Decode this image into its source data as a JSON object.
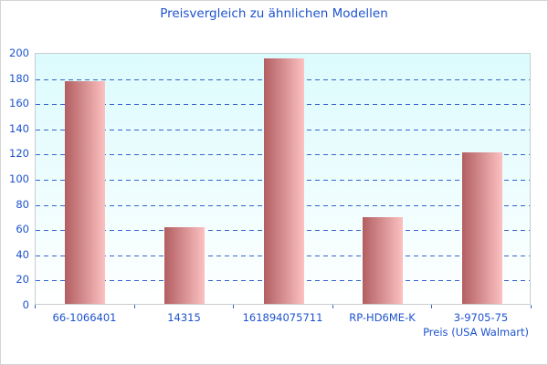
{
  "chart_data": {
    "type": "bar",
    "title": "Preisvergleich zu ähnlichen Modellen",
    "categories": [
      "66-1066401",
      "14315",
      "161894075711",
      "RP-HD6ME-K",
      "3-9705-75"
    ],
    "values": [
      177,
      61,
      195,
      69,
      120
    ],
    "xlabel": "Preis (USA Walmart)",
    "ylabel": "",
    "ylim": [
      0,
      200
    ],
    "ytick_step": 20,
    "grid": "horizontal-dashed",
    "legend": "none",
    "colors": {
      "title_text": "#1d53cf",
      "axis_text": "#1d53cf",
      "gridline": "#3565cb",
      "axis_tick": "#3565cb",
      "plot_border": "#c9cdd1",
      "plot_bg_top": "#dcfbfd",
      "plot_bg_bottom": "#ffffff",
      "bar_gradient_left": "#b25e61",
      "bar_gradient_right": "#fcc1c1",
      "outer_border": "#d4d4d4"
    }
  }
}
